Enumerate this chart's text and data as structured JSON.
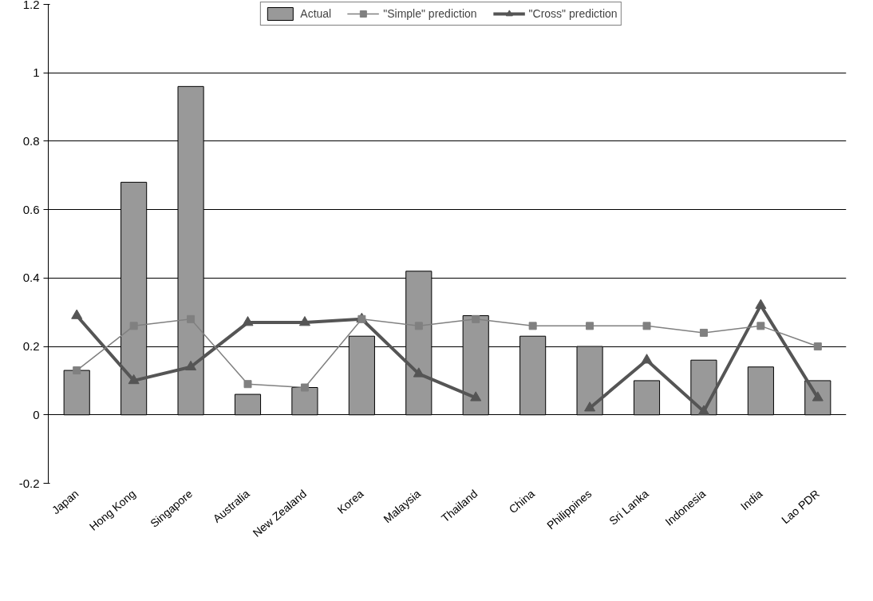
{
  "chart_data": {
    "type": "bar",
    "categories": [
      "Japan",
      "Hong Kong",
      "Singapore",
      "Australia",
      "New Zealand",
      "Korea",
      "Malaysia",
      "Thailand",
      "China",
      "Philippines",
      "Sri Lanka",
      "Indonesia",
      "India",
      "Lao PDR"
    ],
    "series": [
      {
        "name": "Actual",
        "color": "#999999",
        "values": [
          0.13,
          0.68,
          0.96,
          0.06,
          0.08,
          0.23,
          0.42,
          0.29,
          0.23,
          0.2,
          0.1,
          0.16,
          0.14,
          0.1
        ]
      },
      {
        "name": "\"Simple\" prediction",
        "type": "line",
        "marker": "square",
        "color": "#808080",
        "values": [
          0.13,
          0.26,
          0.28,
          0.09,
          0.08,
          0.28,
          0.26,
          0.28,
          0.26,
          0.26,
          0.26,
          0.24,
          0.26,
          0.2
        ]
      },
      {
        "name": "\"Cross\" prediction",
        "type": "line",
        "marker": "triangle",
        "color": "#555555",
        "values": [
          0.29,
          0.1,
          0.14,
          0.27,
          0.27,
          0.28,
          0.12,
          0.05,
          null,
          0.02,
          0.16,
          0.01,
          0.32,
          0.05
        ]
      }
    ],
    "ylim": [
      -0.2,
      1.2
    ],
    "yticks": [
      -0.2,
      0,
      0.2,
      0.4,
      0.6,
      0.8,
      1,
      1.2
    ],
    "grid": "y",
    "legend": "top"
  }
}
